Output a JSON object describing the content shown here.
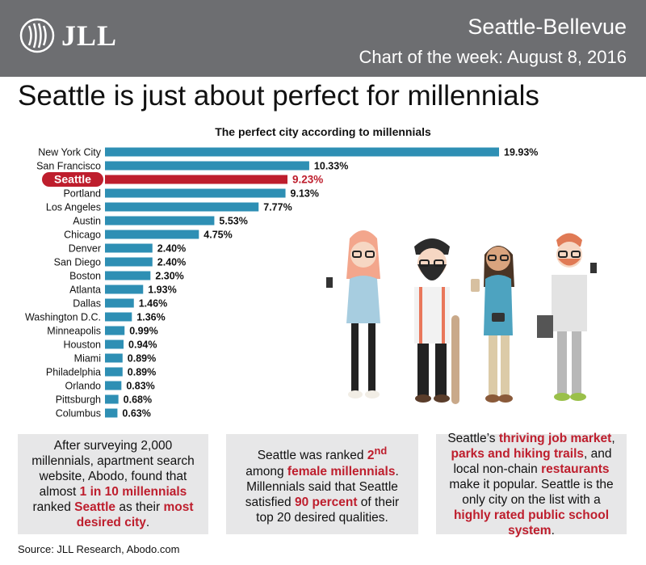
{
  "header": {
    "logo_text": "JLL",
    "region": "Seattle-Bellevue",
    "subtitle": "Chart of the week: August 8, 2016"
  },
  "headline": "Seattle is just about perfect for millennials",
  "chart_data": {
    "type": "bar",
    "orientation": "horizontal",
    "title": "The perfect city according to millennials",
    "categories": [
      "New York City",
      "San Francisco",
      "Seattle",
      "Portland",
      "Los Angeles",
      "Austin",
      "Chicago",
      "Denver",
      "San Diego",
      "Boston",
      "Atlanta",
      "Dallas",
      "Washington D.C.",
      "Minneapolis",
      "Houston",
      "Miami",
      "Philadelphia",
      "Orlando",
      "Pittsburgh",
      "Columbus"
    ],
    "values": [
      19.93,
      10.33,
      9.23,
      9.13,
      7.77,
      5.53,
      4.75,
      2.4,
      2.4,
      2.3,
      1.93,
      1.46,
      1.36,
      0.99,
      0.94,
      0.89,
      0.89,
      0.83,
      0.68,
      0.63
    ],
    "value_labels": [
      "19.93%",
      "10.33%",
      "9.23%",
      "9.13%",
      "7.77%",
      "5.53%",
      "4.75%",
      "2.40%",
      "2.40%",
      "2.30%",
      "1.93%",
      "1.46%",
      "1.36%",
      "0.99%",
      "0.94%",
      "0.89%",
      "0.89%",
      "0.83%",
      "0.68%",
      "0.63%"
    ],
    "highlight": "Seattle",
    "colors": {
      "bar": "#2e8fb4",
      "highlight": "#be1e2d"
    },
    "xlim": [
      0,
      20
    ],
    "grid": false,
    "legend": "none"
  },
  "cards": [
    [
      {
        "t": "After surveying 2,000 millennials, apartment search website, Abodo, found that almost "
      },
      {
        "t": "1 in 10 millennials",
        "h": true
      },
      {
        "t": " ranked "
      },
      {
        "t": "Seattle",
        "h": true
      },
      {
        "t": " as their "
      },
      {
        "t": "most desired city",
        "h": true
      },
      {
        "t": "."
      }
    ],
    [
      {
        "t": "Seattle was ranked "
      },
      {
        "t": "2",
        "h": true
      },
      {
        "t": "nd",
        "h": true,
        "sup": true
      },
      {
        "t": " among "
      },
      {
        "t": "female millennials",
        "h": true
      },
      {
        "t": ". Millennials said that Seattle satisfied "
      },
      {
        "t": "90 percent",
        "h": true
      },
      {
        "t": " of their top 20 desired qualities."
      }
    ],
    [
      {
        "t": "Seattle’s "
      },
      {
        "t": "thriving job market",
        "h": true
      },
      {
        "t": ", "
      },
      {
        "t": "parks and hiking trails",
        "h": true
      },
      {
        "t": ", and local non-chain "
      },
      {
        "t": "restaurants",
        "h": true
      },
      {
        "t": " make it popular. Seattle is the only city on the list with a "
      },
      {
        "t": "highly rated public school system",
        "h": true
      },
      {
        "t": "."
      }
    ]
  ],
  "source": "Source: JLL Research, Abodo.com"
}
